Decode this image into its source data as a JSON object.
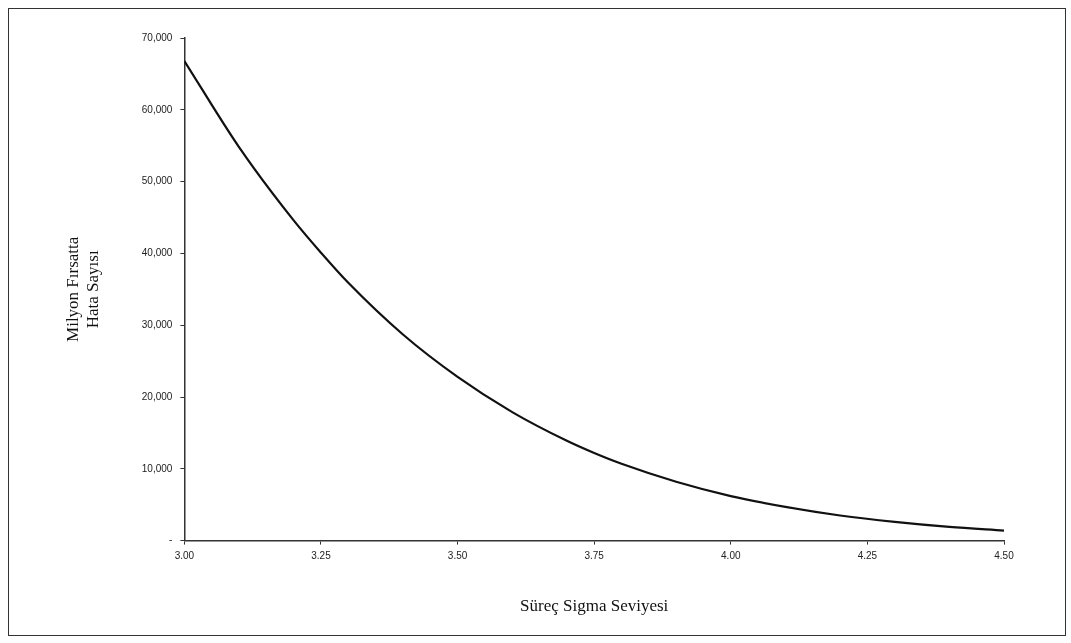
{
  "chart_data": {
    "type": "line",
    "xlabel": "Süreç Sigma Seviyesi",
    "ylabel": "Milyon Fırsatta\nHata Sayısı",
    "x": [
      3.0,
      3.1,
      3.2,
      3.25,
      3.3,
      3.4,
      3.5,
      3.6,
      3.7,
      3.75,
      3.8,
      3.9,
      4.0,
      4.1,
      4.2,
      4.3,
      4.4,
      4.5
    ],
    "series": [
      {
        "color": "#111111",
        "values": [
          66800,
          54800,
          44600,
          40100,
          35900,
          28700,
          22800,
          17900,
          13900,
          12200,
          10700,
          8200,
          6200,
          4700,
          3500,
          2600,
          1900,
          1400
        ]
      }
    ],
    "xlim": [
      3.0,
      4.5
    ],
    "xticks": [
      {
        "value": 3,
        "label": "3.00"
      },
      {
        "value": 3.25,
        "label": "3.25"
      },
      {
        "value": 3.5,
        "label": "3.50"
      },
      {
        "value": 3.75,
        "label": "3.75"
      },
      {
        "value": 4,
        "label": "4.00"
      },
      {
        "value": 4.25,
        "label": "4.25"
      },
      {
        "value": 4.5,
        "label": "4.50"
      }
    ],
    "ylim": [
      0,
      70000
    ],
    "yticks": [
      {
        "value": 0,
        "label": "-"
      },
      {
        "value": 10000,
        "label": "10,000"
      },
      {
        "value": 20000,
        "label": "20,000"
      },
      {
        "value": 30000,
        "label": "30,000"
      },
      {
        "value": 40000,
        "label": "40,000"
      },
      {
        "value": 50000,
        "label": "50,000"
      },
      {
        "value": 60000,
        "label": "60,000"
      },
      {
        "value": 70000,
        "label": "70,000"
      }
    ],
    "grid": false,
    "legend": false,
    "marker": "none",
    "line_style": "solid"
  }
}
